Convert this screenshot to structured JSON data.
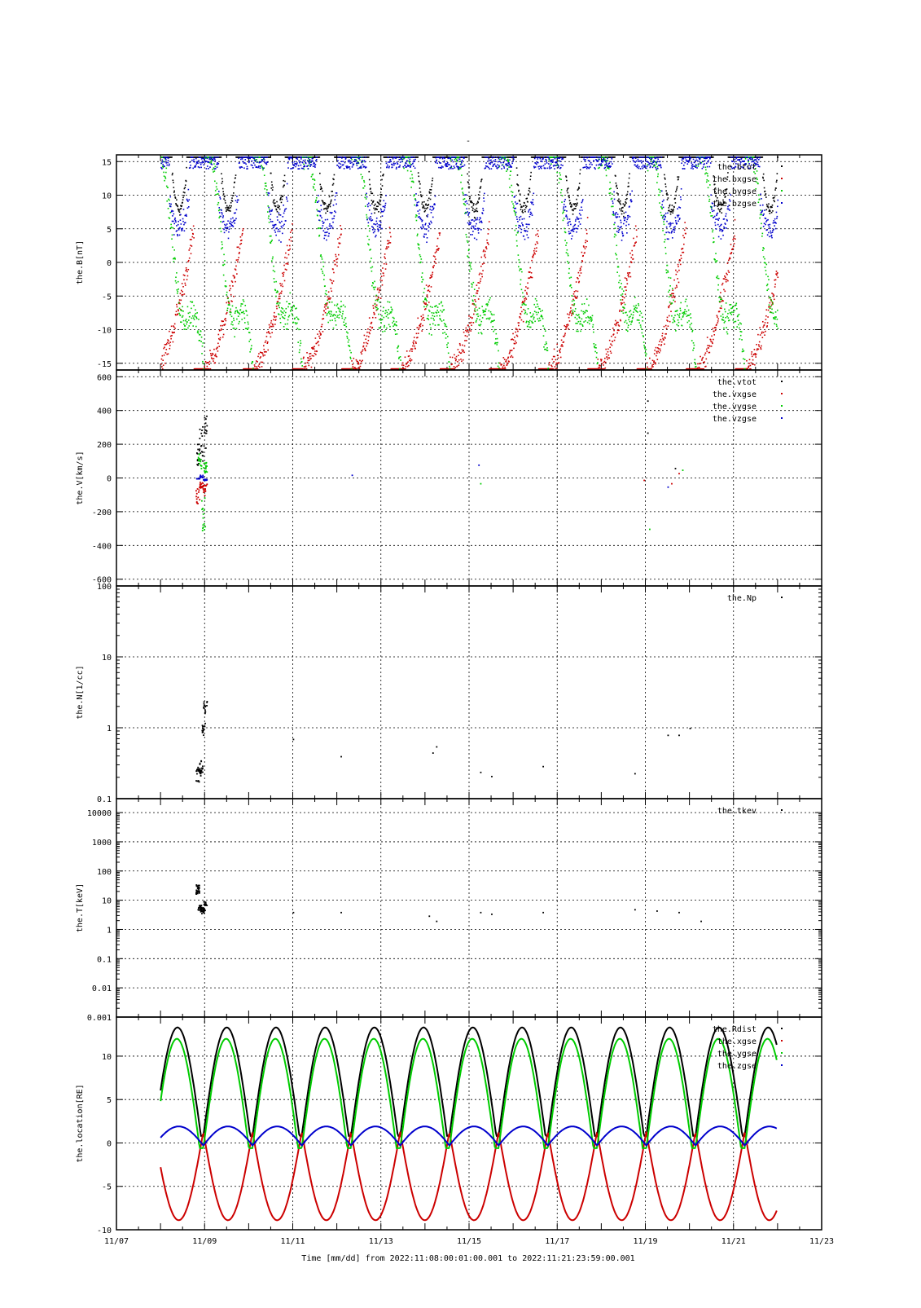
{
  "page_title": "-",
  "footer": {
    "xlabel": "Time [mm/dd]  from 2022:11:08:00:01:00.001  to  2022:11:21:23:59:00.001",
    "xticks": [
      "11/07",
      "11/09",
      "11/11",
      "11/13",
      "11/15",
      "11/17",
      "11/19",
      "11/21",
      "11/23"
    ]
  },
  "colors": {
    "tot": "#000000",
    "x": "#cc0000",
    "y": "#00cc00",
    "z": "#0000cc",
    "grid": "#000000"
  },
  "chart_data": [
    {
      "type": "scatter",
      "ylabel": "the.B[nT]",
      "yscale": "linear",
      "ylim": [
        -16,
        16
      ],
      "yticks": [
        -15,
        -10,
        -5,
        0,
        5,
        10,
        15
      ],
      "ytick_labels": [
        "-15",
        "-10",
        "-5",
        "0",
        "5",
        "10",
        "15"
      ],
      "xlim": [
        "11/07",
        "11/23"
      ],
      "grid": true,
      "legend_position": "top-right",
      "series": [
        {
          "name": "the.btot",
          "color": "#000000",
          "model": "btot"
        },
        {
          "name": "the.bxgse",
          "color": "#cc0000",
          "model": "bx"
        },
        {
          "name": "the.bygse",
          "color": "#00cc00",
          "model": "by"
        },
        {
          "name": "the.bzgse",
          "color": "#0000cc",
          "model": "bz"
        }
      ]
    },
    {
      "type": "scatter",
      "ylabel": "the.V[km/s]",
      "yscale": "linear",
      "ylim": [
        -640,
        640
      ],
      "yticks": [
        -600,
        -400,
        -200,
        0,
        200,
        400,
        600
      ],
      "ytick_labels": [
        "-600",
        "-400",
        "-200",
        "0",
        "200",
        "400",
        "600"
      ],
      "xlim": [
        "11/07",
        "11/23"
      ],
      "grid": true,
      "legend_position": "top-right",
      "series": [
        {
          "name": "the.vtot",
          "color": "#000000",
          "points": [
            [
              "11/08 20:00",
              250
            ],
            [
              "11/08 22:00",
              320
            ],
            [
              "11/09 00:00",
              380
            ],
            [
              "11/19 01:00",
              460
            ],
            [
              "11/19 01:00",
              270
            ],
            [
              "11/19 16:00",
              60
            ]
          ]
        },
        {
          "name": "the.vxgse",
          "color": "#cc0000",
          "points": [
            [
              "11/08 20:00",
              -150
            ],
            [
              "11/08 22:00",
              -60
            ],
            [
              "11/09 00:00",
              -100
            ],
            [
              "11/18 23:00",
              -10
            ],
            [
              "11/19 14:00",
              -30
            ],
            [
              "11/19 18:00",
              30
            ]
          ]
        },
        {
          "name": "the.vygse",
          "color": "#00cc00",
          "points": [
            [
              "11/08 21:00",
              150
            ],
            [
              "11/08 23:00",
              -330
            ],
            [
              "11/09 00:00",
              100
            ],
            [
              "11/15 06:00",
              -30
            ],
            [
              "11/19 02:00",
              -300
            ],
            [
              "11/19 20:00",
              50
            ]
          ]
        },
        {
          "name": "the.vzgse",
          "color": "#0000cc",
          "points": [
            [
              "11/08 20:00",
              0
            ],
            [
              "11/08 22:00",
              20
            ],
            [
              "11/09 00:00",
              -10
            ],
            [
              "11/12 08:00",
              20
            ],
            [
              "11/15 05:00",
              80
            ],
            [
              "11/19 12:00",
              -50
            ]
          ]
        }
      ]
    },
    {
      "type": "scatter",
      "ylabel": "the.N[1/cc]",
      "yscale": "log",
      "ylim": [
        0.1,
        100
      ],
      "yticks": [
        0.1,
        1,
        10,
        100
      ],
      "ytick_labels": [
        "0.1",
        "1",
        "10",
        "100"
      ],
      "xlim": [
        "11/07",
        "11/23"
      ],
      "grid": true,
      "legend_position": "top-right",
      "series": [
        {
          "name": "the.Np",
          "color": "#000000",
          "points": [
            [
              "11/08 20:00",
              0.22
            ],
            [
              "11/08 21:00",
              0.25
            ],
            [
              "11/08 22:00",
              0.3
            ],
            [
              "11/08 23:00",
              1.0
            ],
            [
              "11/09 00:00",
              2.0
            ],
            [
              "11/11 00:00",
              0.7
            ],
            [
              "11/12 02:00",
              0.4
            ],
            [
              "11/14 04:00",
              0.45
            ],
            [
              "11/14 06:00",
              0.55
            ],
            [
              "11/15 06:00",
              0.24
            ],
            [
              "11/15 12:00",
              0.21
            ],
            [
              "11/16 16:00",
              0.29
            ],
            [
              "11/18 18:00",
              0.23
            ],
            [
              "11/19 12:00",
              0.8
            ],
            [
              "11/19 18:00",
              0.8
            ],
            [
              "11/20 00:00",
              1.0
            ]
          ]
        }
      ]
    },
    {
      "type": "scatter",
      "ylabel": "the.T[keV]",
      "yscale": "log",
      "ylim": [
        0.001,
        30000
      ],
      "yticks": [
        0.001,
        0.01,
        0.1,
        1,
        10,
        100,
        1000,
        10000
      ],
      "ytick_labels": [
        "0.001",
        "0.01",
        "0.1",
        "1",
        "10",
        "100",
        "1000",
        "10000"
      ],
      "xlim": [
        "11/07",
        "11/23"
      ],
      "grid": true,
      "legend_position": "top-right",
      "series": [
        {
          "name": "the.tkev",
          "color": "#000000",
          "points": [
            [
              "11/08 20:00",
              30
            ],
            [
              "11/08 20:00",
              20
            ],
            [
              "11/08 21:00",
              6
            ],
            [
              "11/08 22:00",
              5
            ],
            [
              "11/08 23:00",
              4.5
            ],
            [
              "11/09 00:00",
              8
            ],
            [
              "11/11 00:00",
              4
            ],
            [
              "11/12 02:00",
              4
            ],
            [
              "11/14 02:00",
              3
            ],
            [
              "11/14 06:00",
              2
            ],
            [
              "11/15 06:00",
              4
            ],
            [
              "11/15 12:00",
              3.5
            ],
            [
              "11/16 16:00",
              4
            ],
            [
              "11/18 18:00",
              5
            ],
            [
              "11/19 06:00",
              4.5
            ],
            [
              "11/19 18:00",
              4
            ],
            [
              "11/20 06:00",
              2
            ]
          ]
        }
      ]
    },
    {
      "type": "line",
      "ylabel": "the.location[RE]",
      "yscale": "linear",
      "ylim": [
        -10,
        14.5
      ],
      "yticks": [
        -10,
        -5,
        0,
        5,
        10
      ],
      "ytick_labels": [
        "-10",
        "-5",
        "0",
        "5",
        "10"
      ],
      "xlim": [
        "11/07",
        "11/23"
      ],
      "grid": true,
      "legend_position": "top-right",
      "orbit_period_hours": 26.8,
      "series": [
        {
          "name": "the.Rdist",
          "color": "#000000",
          "range": [
            0.8,
            13.3
          ]
        },
        {
          "name": "the.xgse",
          "color": "#cc0000",
          "range": [
            -8.9,
            1.3
          ]
        },
        {
          "name": "the.ygse",
          "color": "#00cc00",
          "range": [
            -0.6,
            12.0
          ]
        },
        {
          "name": "the.zgse",
          "color": "#0000cc",
          "range": [
            -0.7,
            1.9
          ]
        }
      ]
    }
  ]
}
